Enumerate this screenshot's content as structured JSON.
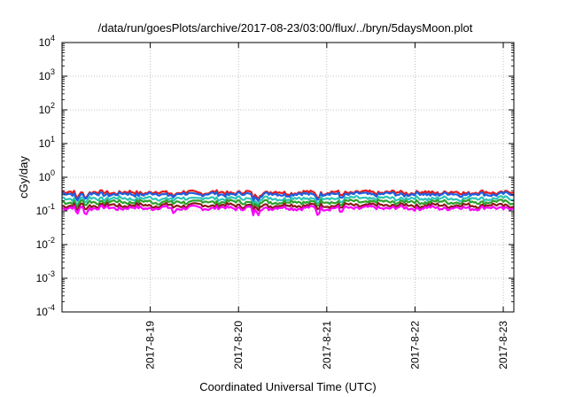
{
  "chart_data": {
    "type": "line",
    "title": "/data/run/goesPlots/archive/2017-08-23/03:00/flux/../bryn/5daysMoon.plot",
    "xlabel": "Coordinated Universal Time (UTC)",
    "ylabel": "cGy/day",
    "yscale": "log",
    "ylim": [
      0.0001,
      10000
    ],
    "xlim": [
      0,
      5.12
    ],
    "grid": true,
    "y_ticks": [
      {
        "base": "10",
        "exp": "-4"
      },
      {
        "base": "10",
        "exp": "-3"
      },
      {
        "base": "10",
        "exp": "-2"
      },
      {
        "base": "10",
        "exp": "-1"
      },
      {
        "base": "10",
        "exp": "0"
      },
      {
        "base": "10",
        "exp": "1"
      },
      {
        "base": "10",
        "exp": "2"
      },
      {
        "base": "10",
        "exp": "3"
      },
      {
        "base": "10",
        "exp": "4"
      }
    ],
    "x_ticks": [
      {
        "label": "2017-8-19",
        "x": 1
      },
      {
        "label": "2017-8-20",
        "x": 2
      },
      {
        "label": "2017-8-21",
        "x": 3
      },
      {
        "label": "2017-8-22",
        "x": 4
      },
      {
        "label": "2017-8-23",
        "x": 5
      }
    ],
    "series": [
      {
        "color": "#e41a1c",
        "base": 0.36,
        "dips": [
          [
            0.17,
            0.6
          ],
          [
            0.27,
            0.7
          ],
          [
            1.27,
            0.75
          ],
          [
            2.17,
            0.6
          ],
          [
            2.22,
            0.7
          ],
          [
            2.9,
            0.7
          ],
          [
            3.16,
            0.75
          ]
        ]
      },
      {
        "color": "#1f5fe0",
        "base": 0.32,
        "dips": [
          [
            0.17,
            0.6
          ],
          [
            0.27,
            0.7
          ],
          [
            1.27,
            0.75
          ],
          [
            2.17,
            0.6
          ],
          [
            2.22,
            0.7
          ],
          [
            2.9,
            0.7
          ],
          [
            3.16,
            0.75
          ]
        ]
      },
      {
        "color": "#2ec4b6",
        "base": 0.24,
        "dips": [
          [
            0.17,
            0.6
          ],
          [
            0.27,
            0.7
          ],
          [
            1.27,
            0.75
          ],
          [
            2.17,
            0.6
          ],
          [
            2.22,
            0.7
          ],
          [
            2.9,
            0.7
          ],
          [
            3.16,
            0.75
          ]
        ]
      },
      {
        "color": "#2ca02c",
        "base": 0.19,
        "dips": [
          [
            0.17,
            0.6
          ],
          [
            0.27,
            0.7
          ],
          [
            1.27,
            0.75
          ],
          [
            2.17,
            0.6
          ],
          [
            2.22,
            0.7
          ],
          [
            2.9,
            0.7
          ],
          [
            3.16,
            0.75
          ]
        ]
      },
      {
        "color": "#8b1a1a",
        "base": 0.15,
        "dips": [
          [
            0.17,
            0.6
          ],
          [
            0.27,
            0.7
          ],
          [
            1.27,
            0.75
          ],
          [
            2.17,
            0.6
          ],
          [
            2.22,
            0.7
          ],
          [
            2.9,
            0.7
          ],
          [
            3.16,
            0.75
          ]
        ]
      },
      {
        "color": "#ff00ff",
        "base": 0.125,
        "dips": [
          [
            0.17,
            0.55
          ],
          [
            0.27,
            0.6
          ],
          [
            1.27,
            0.6
          ],
          [
            2.17,
            0.55
          ],
          [
            2.22,
            0.6
          ],
          [
            2.9,
            0.55
          ],
          [
            3.16,
            0.6
          ]
        ]
      }
    ]
  }
}
